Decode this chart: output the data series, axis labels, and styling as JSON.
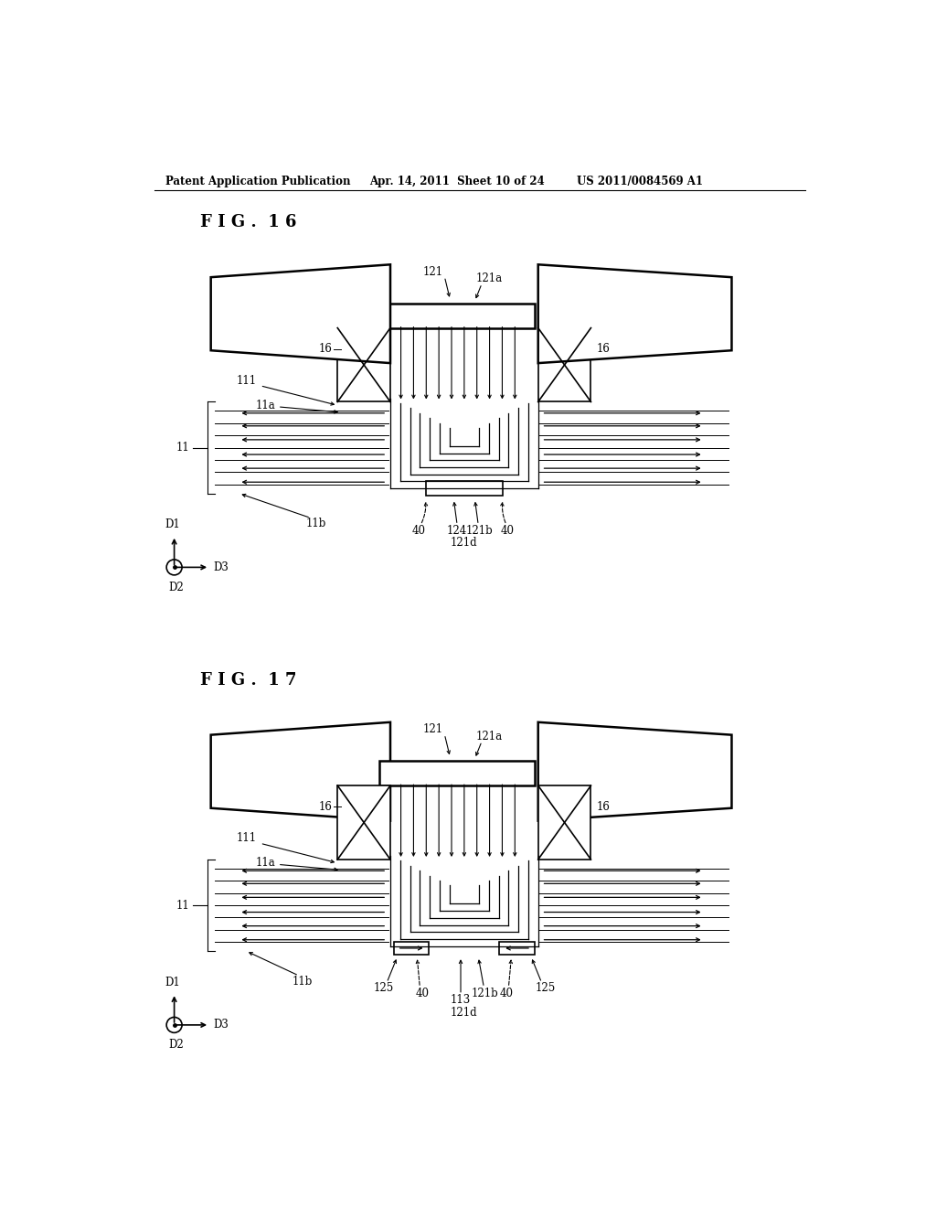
{
  "bg_color": "#ffffff",
  "header_text": "Patent Application Publication",
  "header_date": "Apr. 14, 2011  Sheet 10 of 24",
  "header_patent": "US 2011/0084569 A1",
  "fig16_label": "F I G .  1 6",
  "fig17_label": "F I G .  1 7",
  "line_color": "#000000",
  "lw": 1.2,
  "lw_thick": 1.8
}
